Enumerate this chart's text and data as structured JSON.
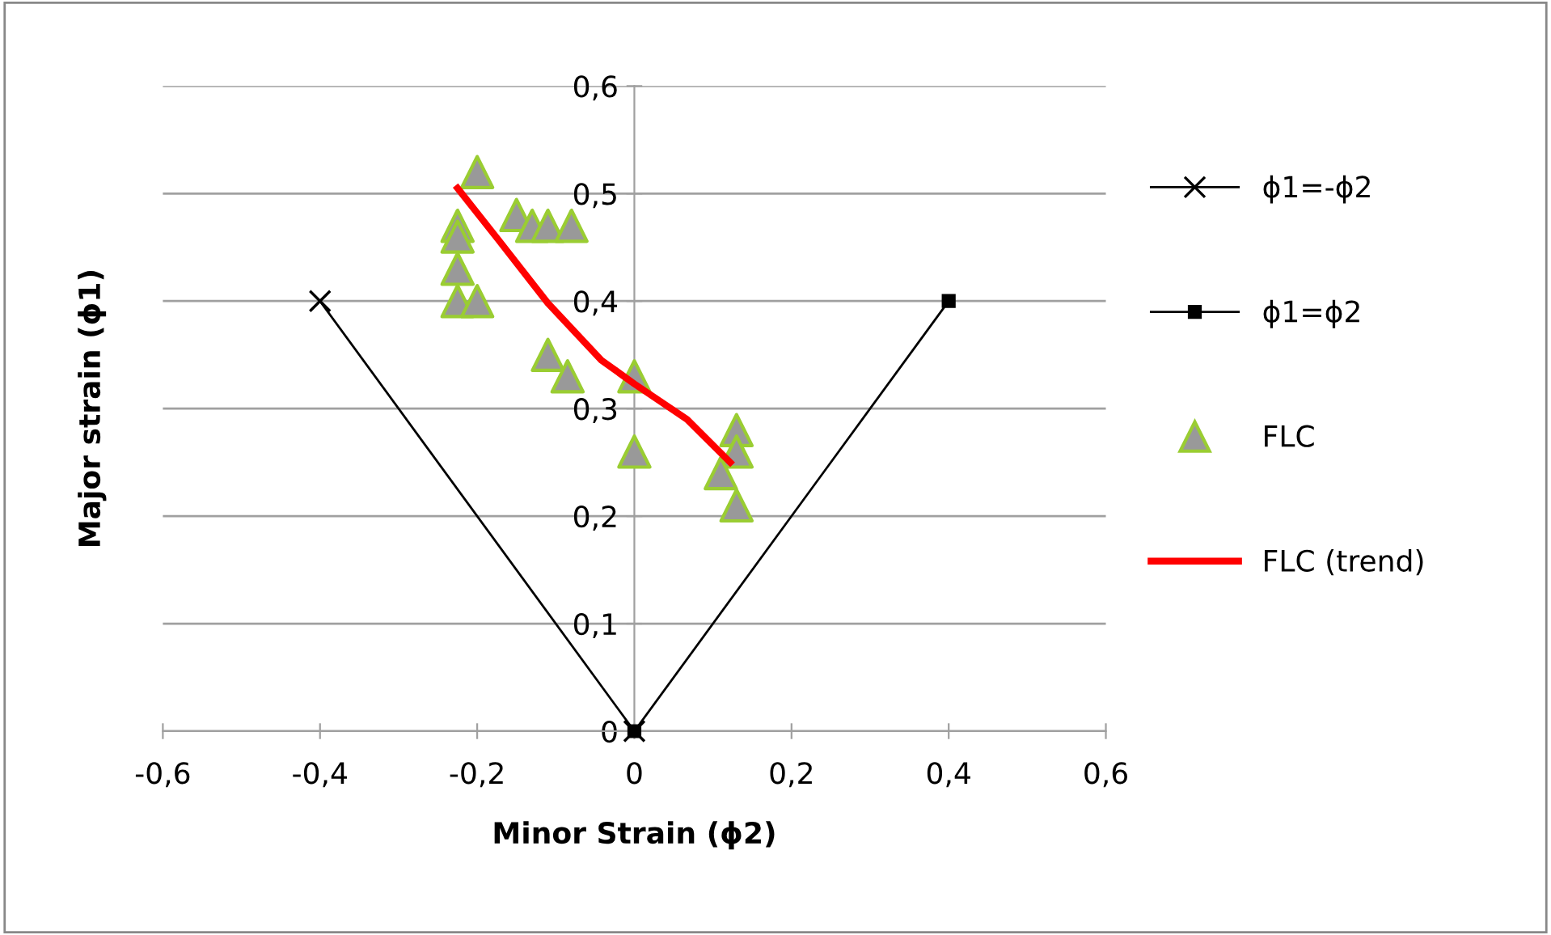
{
  "chart_data": {
    "type": "line",
    "xlabel": "Minor Strain (ϕ2)",
    "ylabel": "Major strain (ϕ1)",
    "xlim": [
      -0.6,
      0.6
    ],
    "ylim": [
      0,
      0.6
    ],
    "xticks": [
      {
        "value": -0.6,
        "label": "-0,6"
      },
      {
        "value": -0.4,
        "label": "-0,4"
      },
      {
        "value": -0.2,
        "label": "-0,2"
      },
      {
        "value": 0,
        "label": "0"
      },
      {
        "value": 0.2,
        "label": "0,2"
      },
      {
        "value": 0.4,
        "label": "0,4"
      },
      {
        "value": 0.6,
        "label": "0,6"
      }
    ],
    "yticks": [
      {
        "value": 0,
        "label": "0"
      },
      {
        "value": 0.1,
        "label": "0,1"
      },
      {
        "value": 0.2,
        "label": "0,2"
      },
      {
        "value": 0.3,
        "label": "0,3"
      },
      {
        "value": 0.4,
        "label": "0,4"
      },
      {
        "value": 0.5,
        "label": "0,5"
      },
      {
        "value": 0.6,
        "label": "0,6"
      }
    ],
    "grid": "y",
    "legend": "right",
    "series": [
      {
        "name": "ϕ1=-ϕ2",
        "color": "#000000",
        "marker": "cross",
        "x": [
          -0.4,
          0
        ],
        "values": [
          0.4,
          0
        ]
      },
      {
        "name": "ϕ1=ϕ2",
        "color": "#000000",
        "marker": "square",
        "x": [
          0,
          0.4
        ],
        "values": [
          0,
          0.4
        ]
      },
      {
        "name": "FLC",
        "type": "scatter",
        "color": "#999999",
        "marker": "triangle",
        "x": [
          -0.2,
          -0.15,
          -0.13,
          -0.11,
          -0.08,
          -0.225,
          -0.225,
          -0.225,
          -0.225,
          -0.2,
          -0.11,
          -0.085,
          0.0,
          0.0,
          0.13,
          0.13,
          0.11,
          0.13
        ],
        "values": [
          0.52,
          0.48,
          0.47,
          0.47,
          0.47,
          0.47,
          0.46,
          0.43,
          0.4,
          0.4,
          0.35,
          0.33,
          0.33,
          0.26,
          0.28,
          0.26,
          0.24,
          0.21
        ]
      },
      {
        "name": "FLC (trend)",
        "color": "#ff0000",
        "marker": "none",
        "x": [
          -0.225,
          -0.172,
          -0.11,
          -0.042,
          0.0,
          0.067,
          0.122
        ],
        "values": [
          0.505,
          0.456,
          0.398,
          0.345,
          0.323,
          0.29,
          0.25
        ]
      }
    ]
  }
}
